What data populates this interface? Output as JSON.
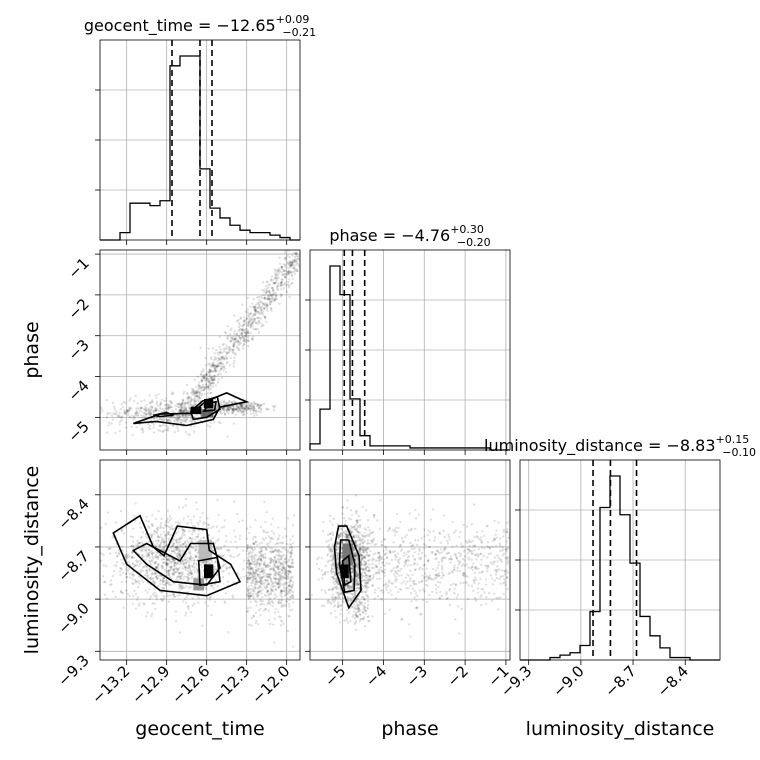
{
  "chart_data": {
    "type": "corner",
    "parameters": [
      "geocent_time",
      "phase",
      "luminosity_distance"
    ],
    "titles": {
      "geocent_time": {
        "prefix": "geocent_time = −12.65",
        "plus": "+0.09",
        "minus": "−0.21"
      },
      "phase": {
        "prefix": "phase = −4.76",
        "plus": "+0.30",
        "minus": "−0.20"
      },
      "luminosity_distance": {
        "prefix": "luminosity_distance = −8.83",
        "plus": "+0.15",
        "minus": "−0.10"
      }
    },
    "axis_labels": {
      "x": [
        "geocent_time",
        "phase",
        "luminosity_distance"
      ],
      "y": [
        "phase",
        "luminosity_distance"
      ]
    },
    "ranges": {
      "geocent_time": [
        -13.4,
        -11.9
      ],
      "phase": [
        -5.8,
        -0.9
      ],
      "luminosity_distance": [
        -9.35,
        -8.2
      ]
    },
    "ticks": {
      "geocent_time": {
        "values": [
          -13.2,
          -12.9,
          -12.6,
          -12.3,
          -12.0
        ],
        "labels": [
          "−13.2",
          "−12.9",
          "−12.6",
          "−12.3",
          "−12.0"
        ]
      },
      "phase": {
        "values": [
          -5,
          -4,
          -3,
          -2,
          -1
        ],
        "labels": [
          "−5",
          "−4",
          "−3",
          "−2",
          "−1"
        ]
      },
      "luminosity_distance": {
        "values": [
          -9.3,
          -9.0,
          -8.7,
          -8.4
        ],
        "labels": [
          "−9.3",
          "−9.0",
          "−8.7",
          "−8.4"
        ]
      }
    },
    "quantiles": {
      "geocent_time": [
        -12.86,
        -12.65,
        -12.56
      ],
      "phase": [
        -4.96,
        -4.76,
        -4.46
      ],
      "luminosity_distance": [
        -8.93,
        -8.83,
        -8.68
      ]
    },
    "histograms": {
      "geocent_time": {
        "edges_range": [
          -13.4,
          -11.9
        ],
        "counts": [
          0,
          0,
          0.03,
          0.15,
          0.15,
          0.14,
          0.16,
          0.71,
          0.75,
          0.75,
          0.29,
          0.13,
          0.09,
          0.06,
          0.04,
          0.03,
          0.03,
          0.02,
          0.01,
          0.0
        ]
      },
      "phase": {
        "edges_range": [
          -5.8,
          -0.9
        ],
        "counts": [
          0.03,
          0.2,
          0.9,
          0.76,
          0.25,
          0.07,
          0.02,
          0.02,
          0.02,
          0.02,
          0.01,
          0.01,
          0.01,
          0.01,
          0.01,
          0.01,
          0.01,
          0.01,
          0.0,
          0.0
        ]
      },
      "luminosity_distance": {
        "edges_range": [
          -9.35,
          -8.2
        ],
        "counts": [
          0.0,
          0.0,
          0.0,
          0.01,
          0.02,
          0.03,
          0.06,
          0.2,
          0.63,
          0.76,
          0.6,
          0.4,
          0.18,
          0.1,
          0.05,
          0.01,
          0.01,
          0.0,
          0.0,
          0.0
        ]
      }
    },
    "contour_levels": 3,
    "grid": true,
    "legend": "none"
  }
}
